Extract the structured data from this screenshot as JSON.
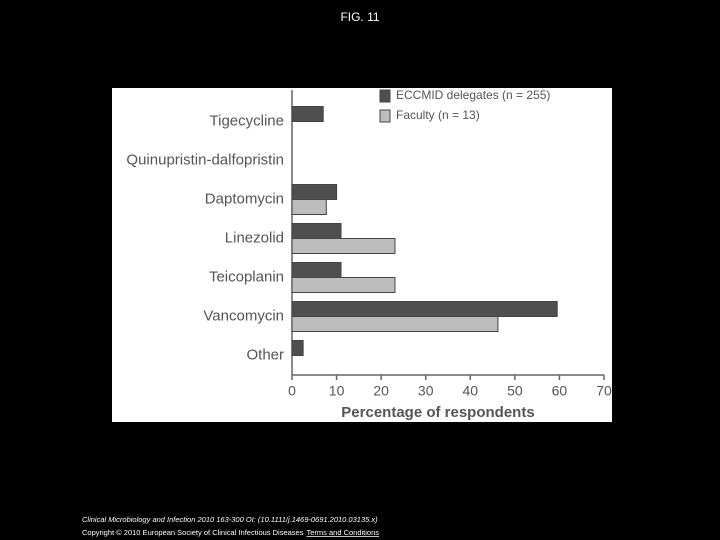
{
  "slide_title": "FIG. 11",
  "chart_data": {
    "type": "hbar",
    "xlabel": "Percentage of respondents",
    "categories": [
      "Tigecycline",
      "Quinupristin-dalfopristin",
      "Daptomycin",
      "Linezolid",
      "Teicoplanin",
      "Vancomycin",
      "Other"
    ],
    "series": [
      {
        "name": "ECCMID delegates (n = 255)",
        "color": "#4f4f4f",
        "values": [
          7,
          0,
          10,
          11,
          11,
          59.5,
          2.5
        ]
      },
      {
        "name": "Faculty (n = 13)",
        "color": "#bdbdbd",
        "values": [
          0,
          0,
          7.7,
          23.1,
          23.1,
          46.2,
          0
        ]
      }
    ],
    "xlim": [
      0,
      70
    ],
    "xticks": [
      0,
      10,
      20,
      30,
      40,
      50,
      60,
      70
    ],
    "legend": "top-right"
  },
  "footer": {
    "citation": "Clinical Microbiology and Infection 2010 163-300 OI: (10.1111/j.1469-0691.2010.03135.x)",
    "copyright": "Copyright © 2010 European Society of Clinical Infectious Diseases",
    "link": "Terms and Conditions"
  }
}
